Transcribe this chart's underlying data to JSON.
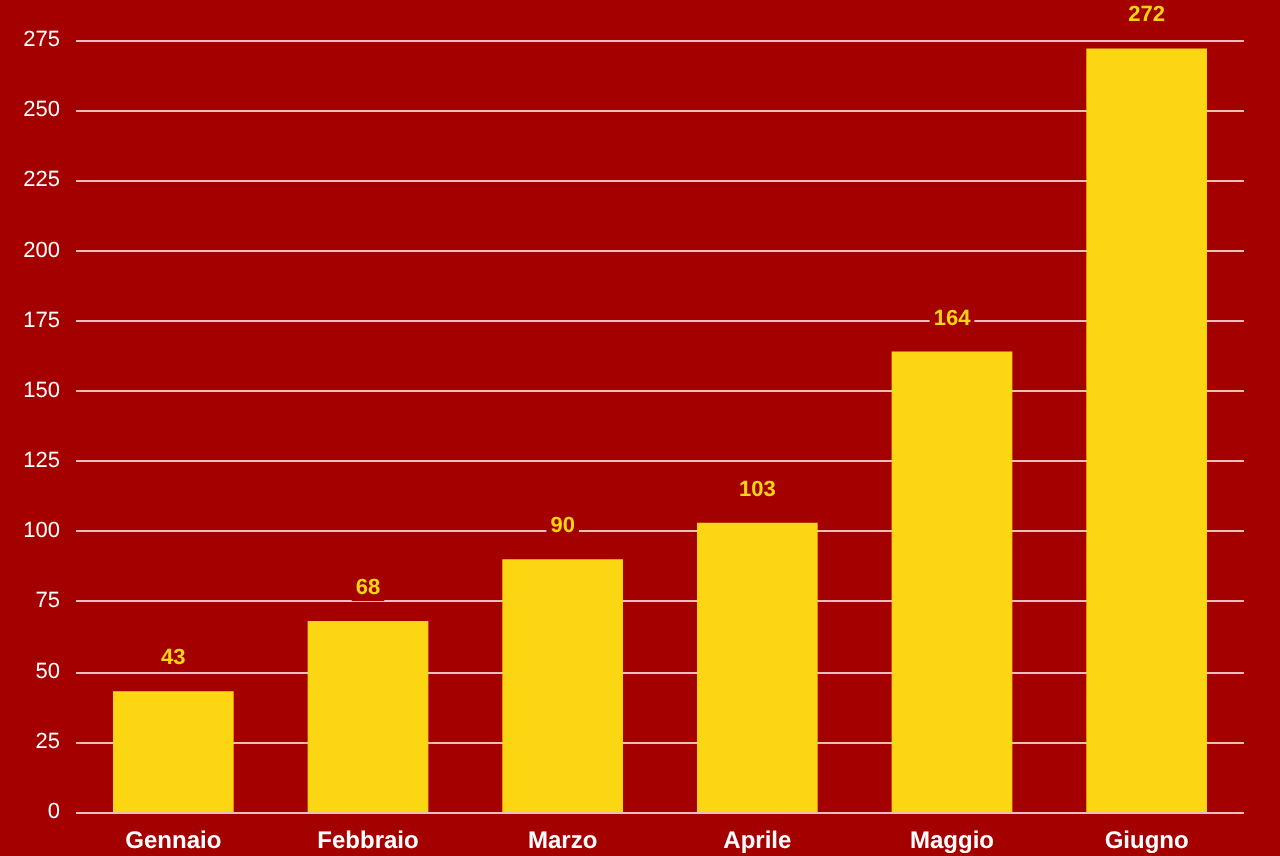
{
  "chart_data": {
    "type": "bar",
    "categories": [
      "Gennaio",
      "Febbraio",
      "Marzo",
      "Aprile",
      "Maggio",
      "Giugno"
    ],
    "values": [
      43,
      68,
      90,
      103,
      164,
      272
    ],
    "color": "#fcd612",
    "ylim": [
      0,
      275
    ],
    "yticks": [
      0,
      25,
      50,
      75,
      100,
      125,
      150,
      175,
      200,
      225,
      250,
      275
    ],
    "grid": "y",
    "data_labels": true
  }
}
